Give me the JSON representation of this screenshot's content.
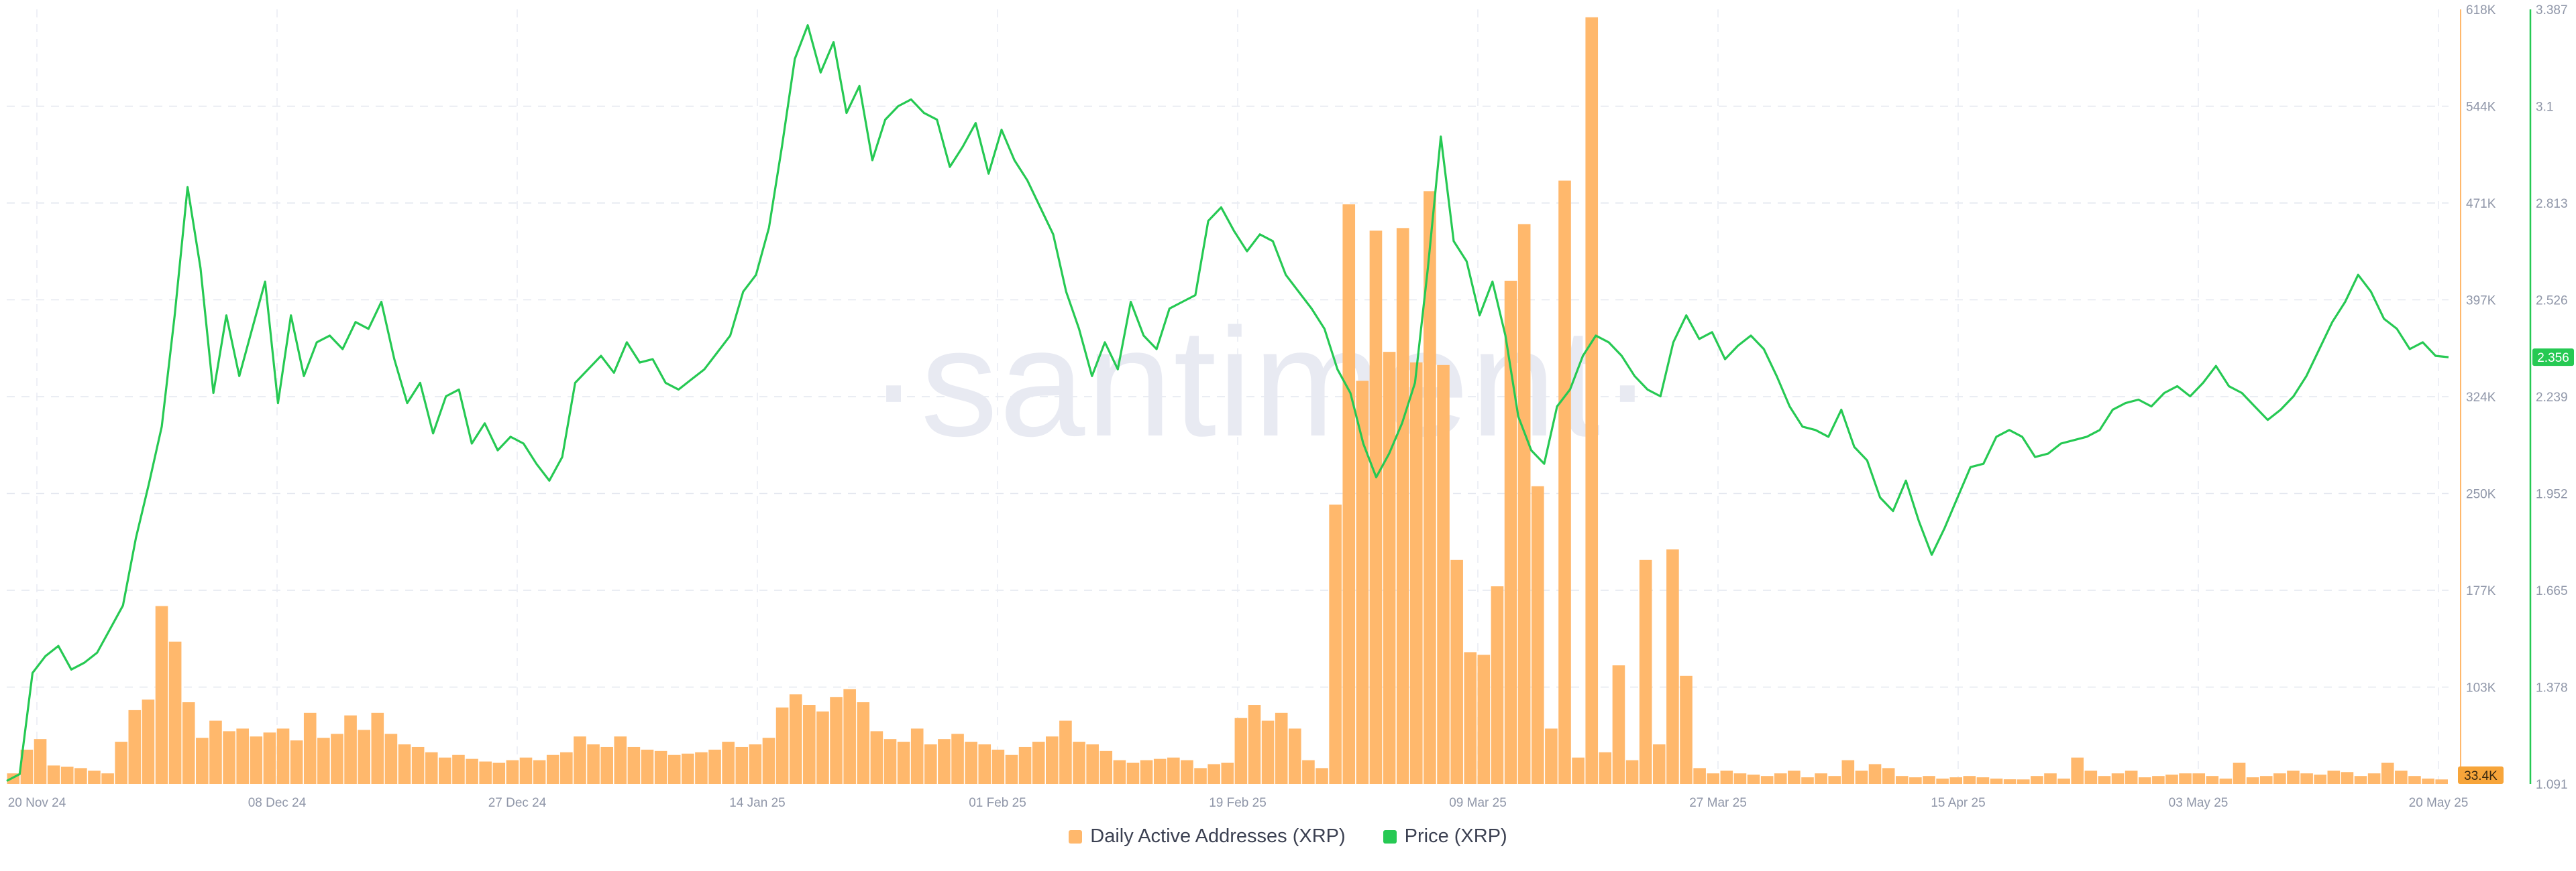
{
  "chart_data": {
    "type": "bar+line",
    "watermark": "·santiment·",
    "x_ticks": [
      "20 Nov 24",
      "08 Dec 24",
      "27 Dec 24",
      "14 Jan 25",
      "01 Feb 25",
      "19 Feb 25",
      "09 Mar 25",
      "27 Mar 25",
      "15 Apr 25",
      "03 May 25",
      "20 May 25"
    ],
    "y_left_ticks": [
      "618K",
      "544K",
      "471K",
      "397K",
      "324K",
      "250K",
      "177K",
      "103K"
    ],
    "y_right_ticks": [
      "3.387",
      "3.1",
      "2.813",
      "2.526",
      "2.239",
      "1.952",
      "1.665",
      "1.378",
      "1.091"
    ],
    "y_left_range": [
      30000,
      618000
    ],
    "y_right_range": [
      1.091,
      3.387
    ],
    "last_values": {
      "addresses": "33.4K",
      "price": "2.356"
    },
    "colors": {
      "addresses": "#ffb86c",
      "price": "#26c953",
      "addresses_label_bg": "#f7a53a",
      "price_label_bg": "#26c953"
    },
    "series": [
      {
        "name": "Daily Active Addresses (XRP)",
        "type": "bar",
        "axis": "left",
        "values": [
          38000,
          56000,
          64000,
          44000,
          43000,
          42000,
          40000,
          38000,
          62000,
          86000,
          94000,
          165000,
          138000,
          92000,
          65000,
          78000,
          70000,
          72000,
          66000,
          69000,
          72000,
          63000,
          84000,
          65000,
          68000,
          82000,
          71000,
          84000,
          68000,
          60000,
          58000,
          54000,
          50000,
          52000,
          49000,
          47000,
          46000,
          48000,
          50000,
          48000,
          52000,
          54000,
          66000,
          60000,
          58000,
          66000,
          58000,
          56000,
          55000,
          52000,
          53000,
          54000,
          56000,
          62000,
          58000,
          60000,
          65000,
          88000,
          98000,
          90000,
          85000,
          96000,
          102000,
          92000,
          70000,
          64000,
          62000,
          72000,
          60000,
          64000,
          68000,
          62000,
          60000,
          56000,
          52000,
          58000,
          62000,
          66000,
          78000,
          62000,
          60000,
          55000,
          48000,
          46000,
          48000,
          49000,
          50000,
          48000,
          42000,
          45000,
          46000,
          80000,
          90000,
          78000,
          84000,
          72000,
          48000,
          42000,
          242000,
          470000,
          336000,
          450000,
          358000,
          452000,
          350000,
          480000,
          348000,
          200000,
          130000,
          128000,
          180000,
          412000,
          455000,
          256000,
          72000,
          488000,
          50000,
          612000,
          54000,
          120000,
          48000,
          200000,
          60000,
          208000,
          112000,
          42000,
          38000,
          40000,
          38000,
          37000,
          36000,
          38000,
          40000,
          35000,
          38000,
          36000,
          48000,
          40000,
          45000,
          42000,
          36000,
          35000,
          36000,
          34000,
          35000,
          36000,
          35000,
          34000,
          33500,
          33400,
          36000,
          38000,
          34000,
          50000,
          40000,
          36000,
          38000,
          40000,
          35000,
          36000,
          37000,
          38000,
          38000,
          36000,
          34000,
          46000,
          35000,
          36000,
          38000,
          40000,
          38000,
          37000,
          40000,
          39000,
          36000,
          38000,
          46000,
          40000,
          36000,
          34000,
          33400
        ]
      },
      {
        "name": "Price (XRP)",
        "type": "line",
        "axis": "right",
        "values": [
          1.1,
          1.12,
          1.42,
          1.47,
          1.5,
          1.43,
          1.45,
          1.48,
          1.55,
          1.62,
          1.82,
          1.98,
          2.15,
          2.48,
          2.86,
          2.62,
          2.25,
          2.48,
          2.3,
          2.44,
          2.58,
          2.22,
          2.48,
          2.3,
          2.4,
          2.42,
          2.38,
          2.46,
          2.44,
          2.52,
          2.35,
          2.22,
          2.28,
          2.13,
          2.24,
          2.26,
          2.1,
          2.16,
          2.08,
          2.12,
          2.1,
          2.04,
          1.99,
          2.06,
          2.28,
          2.32,
          2.36,
          2.31,
          2.4,
          2.34,
          2.35,
          2.28,
          2.26,
          2.29,
          2.32,
          2.37,
          2.42,
          2.55,
          2.6,
          2.74,
          2.98,
          3.24,
          3.34,
          3.2,
          3.29,
          3.08,
          3.16,
          2.94,
          3.06,
          3.1,
          3.12,
          3.08,
          3.06,
          2.92,
          2.98,
          3.05,
          2.9,
          3.03,
          2.94,
          2.88,
          2.8,
          2.72,
          2.55,
          2.44,
          2.3,
          2.4,
          2.32,
          2.52,
          2.42,
          2.38,
          2.5,
          2.52,
          2.54,
          2.76,
          2.8,
          2.73,
          2.67,
          2.72,
          2.7,
          2.6,
          2.55,
          2.5,
          2.44,
          2.32,
          2.25,
          2.1,
          2.0,
          2.07,
          2.16,
          2.28,
          2.62,
          3.01,
          2.7,
          2.64,
          2.48,
          2.58,
          2.42,
          2.18,
          2.08,
          2.04,
          2.21,
          2.26,
          2.36,
          2.42,
          2.4,
          2.36,
          2.3,
          2.26,
          2.24,
          2.4,
          2.48,
          2.41,
          2.43,
          2.35,
          2.39,
          2.42,
          2.38,
          2.3,
          2.21,
          2.15,
          2.14,
          2.12,
          2.2,
          2.09,
          2.05,
          1.94,
          1.9,
          1.99,
          1.87,
          1.77,
          1.85,
          1.94,
          2.03,
          2.04,
          2.12,
          2.14,
          2.12,
          2.06,
          2.07,
          2.1,
          2.11,
          2.12,
          2.14,
          2.2,
          2.22,
          2.23,
          2.21,
          2.25,
          2.27,
          2.24,
          2.28,
          2.33,
          2.27,
          2.25,
          2.21,
          2.17,
          2.2,
          2.24,
          2.3,
          2.38,
          2.46,
          2.52,
          2.6,
          2.55,
          2.47,
          2.44,
          2.38,
          2.4,
          2.36,
          2.356
        ]
      }
    ],
    "legend": [
      {
        "label": "Daily Active Addresses (XRP)",
        "color": "#ffb86c"
      },
      {
        "label": "Price (XRP)",
        "color": "#26c953"
      }
    ]
  }
}
